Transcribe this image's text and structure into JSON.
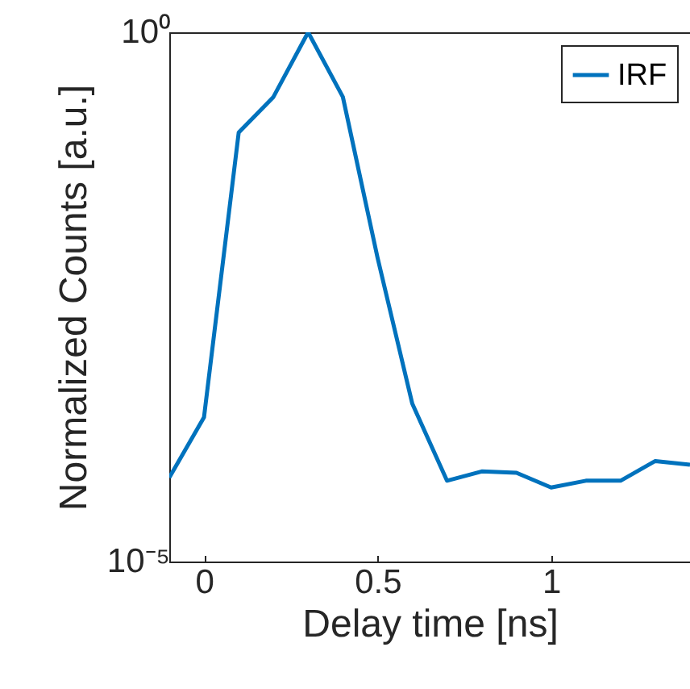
{
  "chart_data": {
    "type": "line",
    "xlabel": "Delay time [ns]",
    "ylabel": "Normalized Counts [a.u.]",
    "x": [
      -0.1,
      0,
      0.1,
      0.2,
      0.3,
      0.4,
      0.5,
      0.6,
      0.7,
      0.8,
      0.9,
      1.0,
      1.1,
      1.2,
      1.3,
      1.4
    ],
    "series": [
      {
        "name": "IRF",
        "color": "#0072bd",
        "values": [
          6.2e-05,
          0.00023,
          0.113,
          0.245,
          1,
          0.245,
          0.0074,
          0.00031,
          5.8e-05,
          7.1e-05,
          6.9e-05,
          5e-05,
          5.8e-05,
          5.8e-05,
          8.9e-05,
          8.2e-05
        ]
      }
    ],
    "log": "y",
    "xlim": [
      -0.1,
      1.4
    ],
    "xticks": [
      0,
      0.5,
      1
    ],
    "ylim": [
      1e-05,
      1
    ],
    "yticks": [
      {
        "value": 1e-05,
        "label": "10⁻⁵"
      },
      {
        "value": 1,
        "label": "10⁰"
      }
    ],
    "grid": false,
    "legend": "top right",
    "marker": "none",
    "line_style": "solid"
  }
}
